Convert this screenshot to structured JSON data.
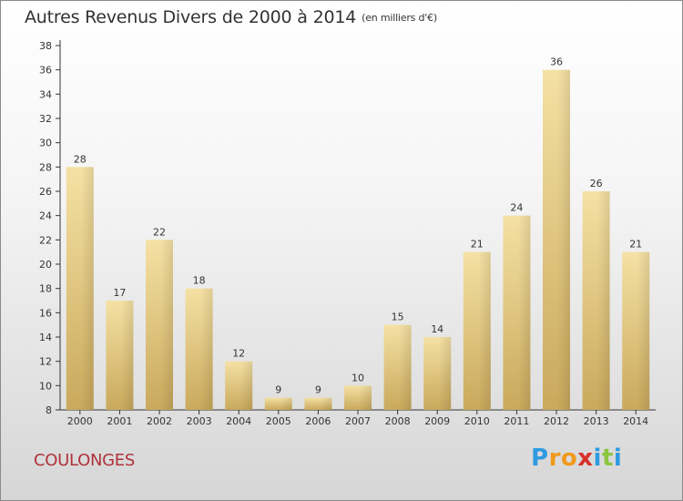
{
  "title": "Autres Revenus Divers de 2000 à 2014",
  "title_unit": "(en milliers d'€)",
  "city": "COULONGES",
  "logo": {
    "letters": [
      "P",
      "r",
      "o",
      "x",
      "i",
      "t",
      "i"
    ],
    "colors": [
      "#2e9be0",
      "#f09a1c",
      "#f09a1c",
      "#d6322a",
      "#2e9be0",
      "#8cc63f",
      "#2e9be0"
    ]
  },
  "colors": {
    "bar_light": "#f5e1a4",
    "bar_dark": "#c9a95c",
    "axis": "#333333",
    "city": "#b0323c"
  },
  "chart_data": {
    "type": "bar",
    "categories": [
      "2000",
      "2001",
      "2002",
      "2003",
      "2004",
      "2005",
      "2006",
      "2007",
      "2008",
      "2009",
      "2010",
      "2011",
      "2012",
      "2013",
      "2014"
    ],
    "values": [
      28,
      17,
      22,
      18,
      12,
      9,
      9,
      10,
      15,
      14,
      21,
      24,
      36,
      26,
      21
    ],
    "ylim": [
      8,
      38
    ],
    "yticks": [
      8,
      10,
      12,
      14,
      16,
      18,
      20,
      22,
      24,
      26,
      28,
      30,
      32,
      34,
      36,
      38
    ],
    "title": "Autres Revenus Divers de 2000 à 2014",
    "xlabel": "",
    "ylabel": "",
    "grid": false
  }
}
